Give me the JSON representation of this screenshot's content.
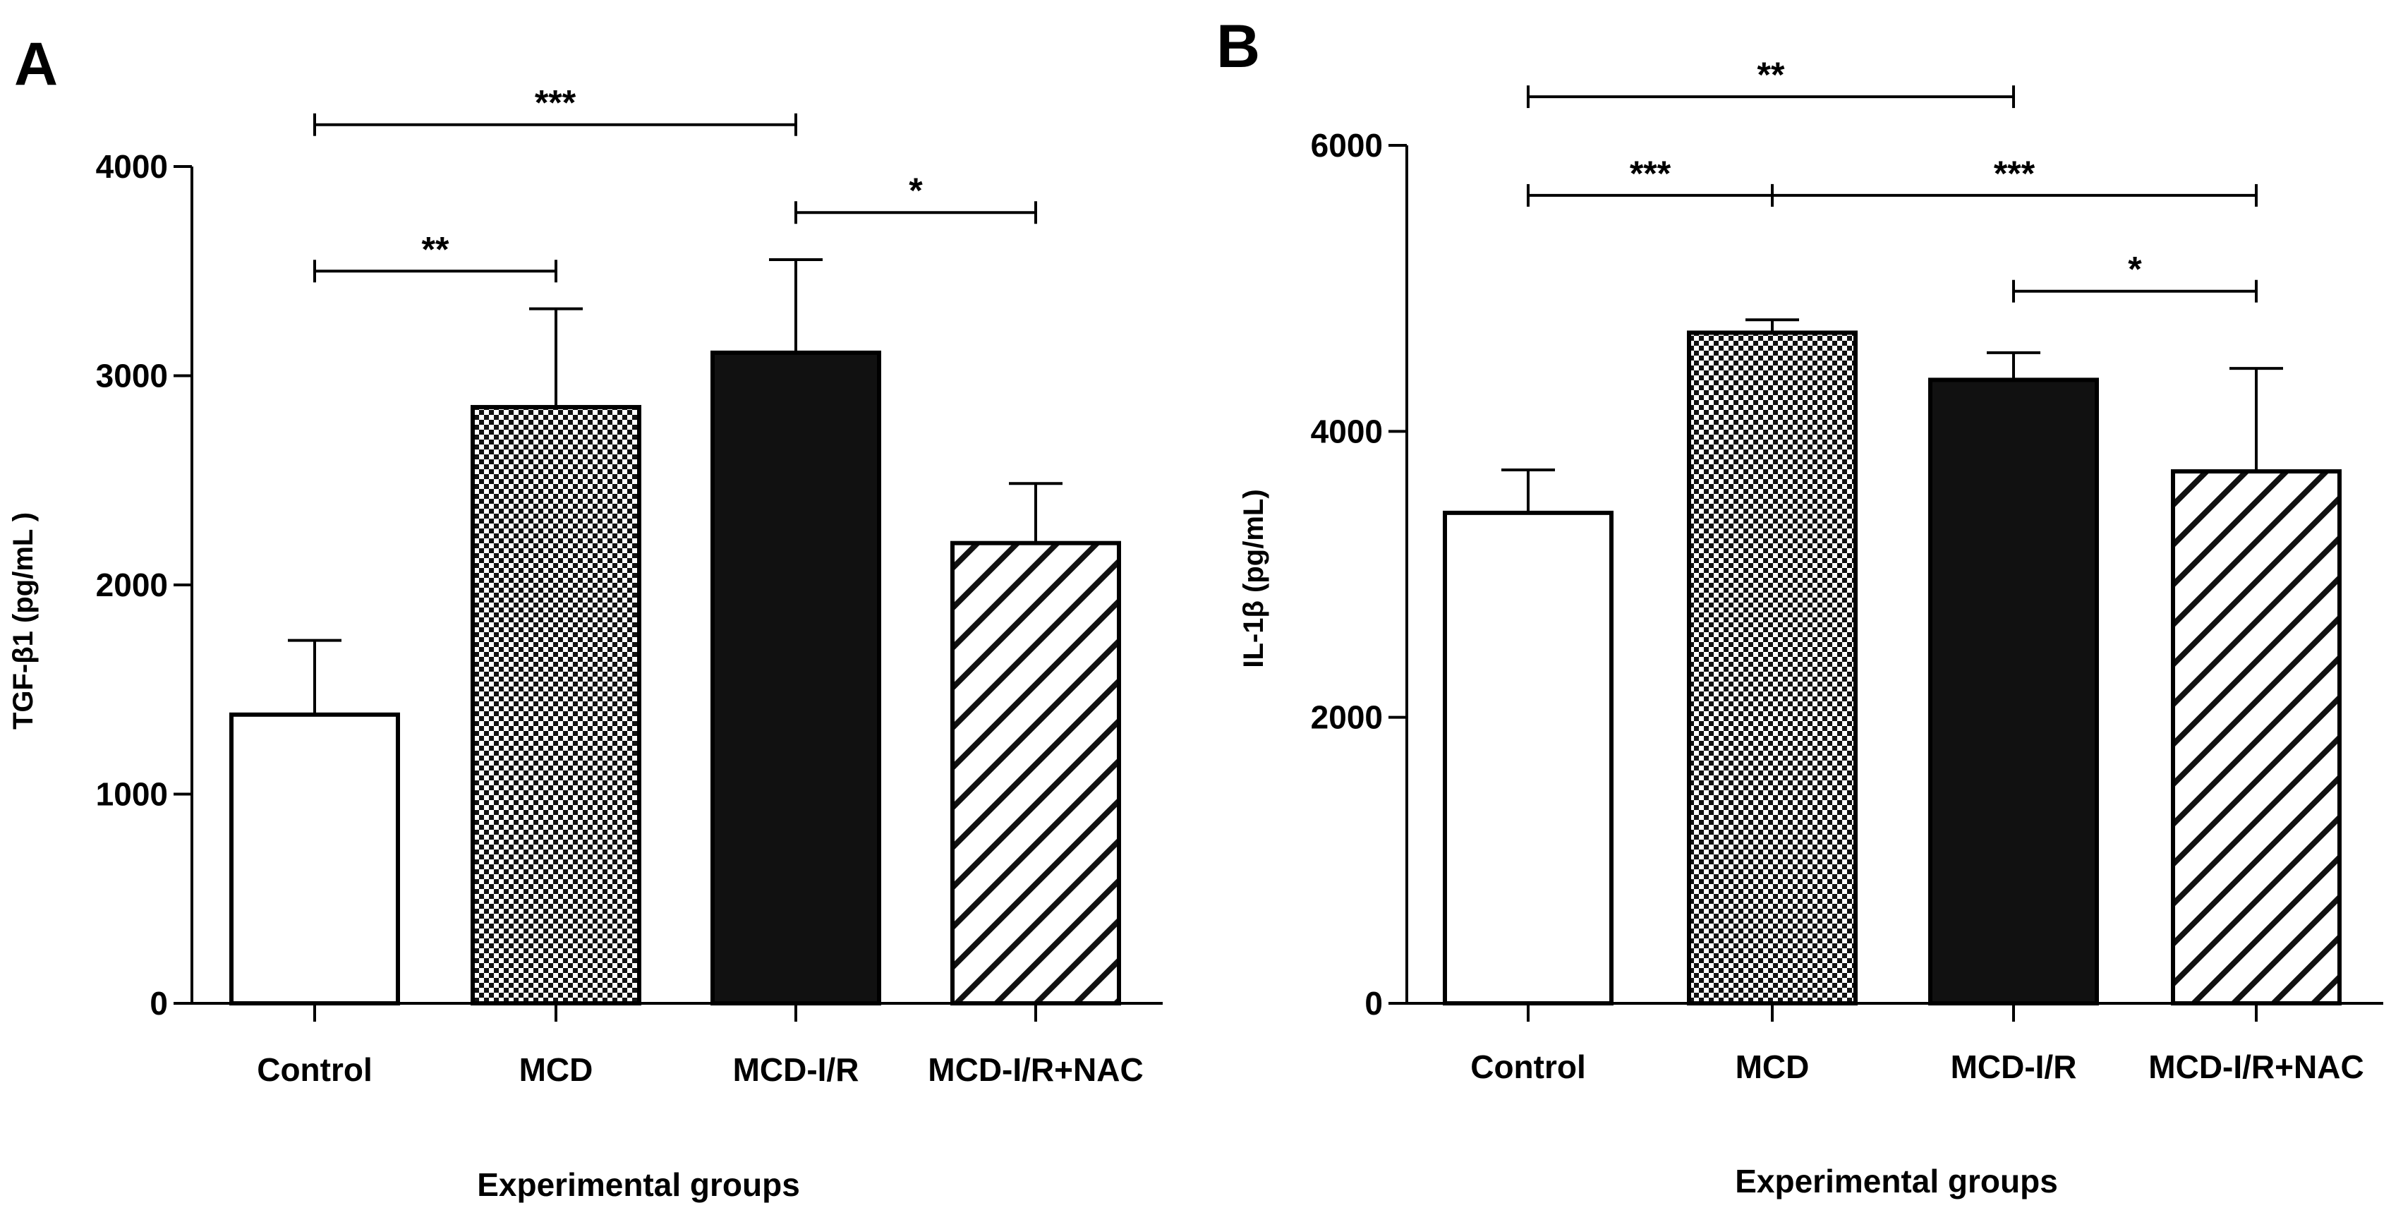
{
  "chart_data": [
    {
      "type": "bar",
      "panel_letter": "A",
      "categories": [
        "Control",
        "MCD",
        "MCD-I/R",
        "MCD-I/R+NAC"
      ],
      "values": [
        1380,
        2850,
        3110,
        2200
      ],
      "errors": [
        355,
        470,
        445,
        285
      ],
      "fills": [
        "white",
        "checker",
        "black",
        "hatch"
      ],
      "ylabel": "TGF-β1 (pg/mL )",
      "xlabel": "Experimental groups",
      "ylim": [
        0,
        4000
      ],
      "yticks": [
        0,
        1000,
        2000,
        3000,
        4000
      ],
      "grid": false,
      "significance": [
        {
          "from": 0,
          "to": 2,
          "label": "***",
          "y": 4200
        },
        {
          "from": 0,
          "to": 1,
          "label": "**",
          "y": 3500
        },
        {
          "from": 2,
          "to": 3,
          "label": "*",
          "y": 3780
        }
      ]
    },
    {
      "type": "bar",
      "panel_letter": "B",
      "categories": [
        "Control",
        "MCD",
        "MCD-I/R",
        "MCD-I/R+NAC"
      ],
      "values": [
        3430,
        4690,
        4360,
        3720
      ],
      "errors": [
        300,
        90,
        190,
        720
      ],
      "fills": [
        "white",
        "checker",
        "black",
        "hatch"
      ],
      "ylabel": "IL-1β (pg/mL)",
      "xlabel": "Experimental groups",
      "ylim": [
        0,
        6000
      ],
      "yticks": [
        0,
        2000,
        4000,
        6000
      ],
      "grid": false,
      "significance": [
        {
          "from": 0,
          "to": 2,
          "label": "**",
          "y": 6340
        },
        {
          "from": 0,
          "to": 1,
          "label": "***",
          "y": 5650
        },
        {
          "from": 1,
          "to": 3,
          "label": "***",
          "y": 5650
        },
        {
          "from": 2,
          "to": 3,
          "label": "*",
          "y": 4980
        }
      ]
    }
  ]
}
